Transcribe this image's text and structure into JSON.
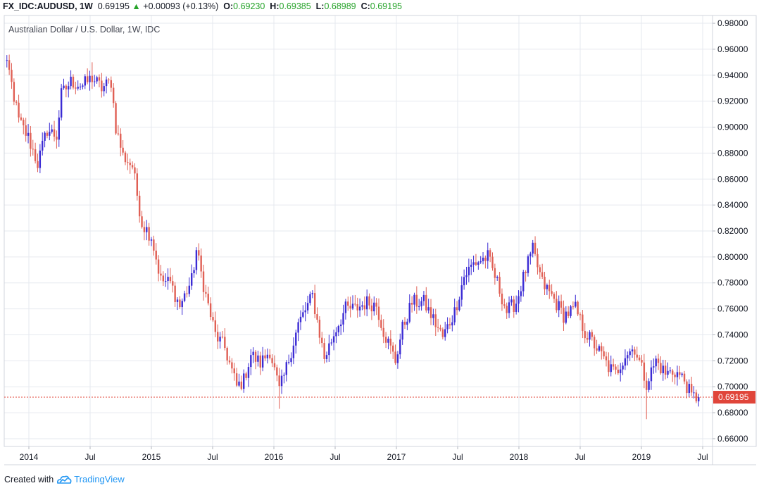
{
  "header": {
    "symbol": "FX_IDC:AUDUSD, 1W",
    "last": "0.69195",
    "change_arrow": "▲",
    "change": "+0.00093 (+0.13%)",
    "o_label": "O:",
    "o_value": "0.69230",
    "h_label": "H:",
    "h_value": "0.69385",
    "l_label": "L:",
    "l_value": "0.68989",
    "c_label": "C:",
    "c_value": "0.69195"
  },
  "footer": {
    "created_with": "Created with",
    "brand": "TradingView",
    "logo_icon": "tradingview-cloud-icon"
  },
  "colors": {
    "up": "#3b2bd4",
    "down": "#e06055",
    "grid": "#e6e9ef",
    "price_line": "#e0453a",
    "text": "#131722",
    "change_up": "#26a32a"
  },
  "chart_data": {
    "type": "candlestick",
    "title": "Australian Dollar / U.S. Dollar, 1W, IDC",
    "y_tick_labels": [
      "0.98000",
      "0.96000",
      "0.94000",
      "0.92000",
      "0.90000",
      "0.88000",
      "0.86000",
      "0.84000",
      "0.82000",
      "0.80000",
      "0.78000",
      "0.76000",
      "0.74000",
      "0.72000",
      "0.70000",
      "0.68000",
      "0.66000"
    ],
    "x_tick_labels": [
      "2014",
      "Jul",
      "2015",
      "Jul",
      "2016",
      "Jul",
      "2017",
      "Jul",
      "2018",
      "Jul",
      "2019",
      "Jul"
    ],
    "ylim": [
      0.654,
      0.986
    ],
    "last_price": 0.69195,
    "last_price_label": "0.69195",
    "grid": true,
    "series_name": "AUDUSD",
    "close_anchors": [
      {
        "date": "2013-10-07",
        "close": 0.957
      },
      {
        "date": "2013-11-04",
        "close": 0.942
      },
      {
        "date": "2013-12-02",
        "close": 0.905
      },
      {
        "date": "2013-12-30",
        "close": 0.892
      },
      {
        "date": "2014-01-27",
        "close": 0.872
      },
      {
        "date": "2014-02-24",
        "close": 0.898
      },
      {
        "date": "2014-03-24",
        "close": 0.893
      },
      {
        "date": "2014-04-07",
        "close": 0.925
      },
      {
        "date": "2014-05-05",
        "close": 0.935
      },
      {
        "date": "2014-06-09",
        "close": 0.932
      },
      {
        "date": "2014-07-07",
        "close": 0.938
      },
      {
        "date": "2014-08-04",
        "close": 0.93
      },
      {
        "date": "2014-09-01",
        "close": 0.935
      },
      {
        "date": "2014-09-15",
        "close": 0.9
      },
      {
        "date": "2014-10-06",
        "close": 0.878
      },
      {
        "date": "2014-11-03",
        "close": 0.87
      },
      {
        "date": "2014-12-01",
        "close": 0.826
      },
      {
        "date": "2014-12-29",
        "close": 0.816
      },
      {
        "date": "2015-01-26",
        "close": 0.782
      },
      {
        "date": "2015-02-23",
        "close": 0.78
      },
      {
        "date": "2015-03-23",
        "close": 0.762
      },
      {
        "date": "2015-04-27",
        "close": 0.782
      },
      {
        "date": "2015-05-11",
        "close": 0.805
      },
      {
        "date": "2015-06-08",
        "close": 0.77
      },
      {
        "date": "2015-07-06",
        "close": 0.74
      },
      {
        "date": "2015-08-03",
        "close": 0.73
      },
      {
        "date": "2015-09-07",
        "close": 0.7
      },
      {
        "date": "2015-09-28",
        "close": 0.705
      },
      {
        "date": "2015-10-19",
        "close": 0.725
      },
      {
        "date": "2015-11-16",
        "close": 0.718
      },
      {
        "date": "2015-12-14",
        "close": 0.728
      },
      {
        "date": "2016-01-11",
        "close": 0.697
      },
      {
        "date": "2016-01-25",
        "close": 0.708
      },
      {
        "date": "2016-03-07",
        "close": 0.748
      },
      {
        "date": "2016-04-18",
        "close": 0.77
      },
      {
        "date": "2016-05-23",
        "close": 0.722
      },
      {
        "date": "2016-06-27",
        "close": 0.745
      },
      {
        "date": "2016-07-25",
        "close": 0.76
      },
      {
        "date": "2016-08-22",
        "close": 0.76
      },
      {
        "date": "2016-09-26",
        "close": 0.765
      },
      {
        "date": "2016-10-24",
        "close": 0.763
      },
      {
        "date": "2016-11-14",
        "close": 0.743
      },
      {
        "date": "2016-12-19",
        "close": 0.72
      },
      {
        "date": "2017-01-09",
        "close": 0.745
      },
      {
        "date": "2017-02-06",
        "close": 0.765
      },
      {
        "date": "2017-03-13",
        "close": 0.765
      },
      {
        "date": "2017-04-10",
        "close": 0.752
      },
      {
        "date": "2017-05-08",
        "close": 0.738
      },
      {
        "date": "2017-06-12",
        "close": 0.758
      },
      {
        "date": "2017-07-10",
        "close": 0.785
      },
      {
        "date": "2017-08-07",
        "close": 0.795
      },
      {
        "date": "2017-09-18",
        "close": 0.8
      },
      {
        "date": "2017-10-16",
        "close": 0.78
      },
      {
        "date": "2017-11-13",
        "close": 0.758
      },
      {
        "date": "2017-12-11",
        "close": 0.765
      },
      {
        "date": "2018-01-08",
        "close": 0.79
      },
      {
        "date": "2018-01-29",
        "close": 0.805
      },
      {
        "date": "2018-02-26",
        "close": 0.78
      },
      {
        "date": "2018-03-26",
        "close": 0.77
      },
      {
        "date": "2018-04-30",
        "close": 0.755
      },
      {
        "date": "2018-06-04",
        "close": 0.76
      },
      {
        "date": "2018-07-02",
        "close": 0.742
      },
      {
        "date": "2018-08-06",
        "close": 0.73
      },
      {
        "date": "2018-09-10",
        "close": 0.715
      },
      {
        "date": "2018-10-01",
        "close": 0.71
      },
      {
        "date": "2018-10-29",
        "close": 0.725
      },
      {
        "date": "2018-11-26",
        "close": 0.73
      },
      {
        "date": "2018-12-31",
        "close": 0.703
      },
      {
        "date": "2019-01-28",
        "close": 0.72
      },
      {
        "date": "2019-02-25",
        "close": 0.71
      },
      {
        "date": "2019-03-25",
        "close": 0.712
      },
      {
        "date": "2019-04-22",
        "close": 0.705
      },
      {
        "date": "2019-05-13",
        "close": 0.692
      },
      {
        "date": "2019-06-03",
        "close": 0.692
      }
    ],
    "wick_extremes": [
      {
        "date": "2019-01-01",
        "low": 0.675
      },
      {
        "date": "2017-09-18",
        "high": 0.811
      },
      {
        "date": "2018-01-29",
        "high": 0.813
      },
      {
        "date": "2014-07-07",
        "high": 0.95
      },
      {
        "date": "2016-01-11",
        "low": 0.683
      }
    ]
  }
}
